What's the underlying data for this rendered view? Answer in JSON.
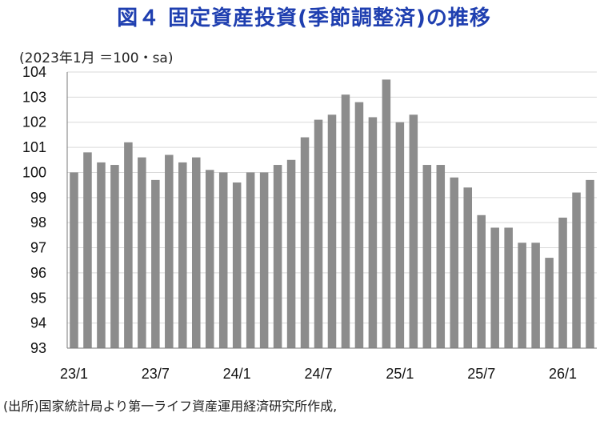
{
  "title": "図４ 固定資産投資(季節調整済)の推移",
  "unit_note": "(2023年1月 ＝100・sa)",
  "source_note": "(出所)国家統計局より第一ライフ資産運用経済研究所作成,",
  "colors": {
    "title": "#1f3fb0",
    "bar": "#8c8c8c",
    "grid": "#d9d9d9"
  },
  "chart_data": {
    "type": "bar",
    "title": "図４ 固定資産投資(季節調整済)の推移",
    "ylim": [
      93,
      104
    ],
    "y_ticks": [
      "93",
      "94",
      "95",
      "96",
      "97",
      "98",
      "99",
      "100",
      "101",
      "102",
      "103",
      "104"
    ],
    "x_tick_labels": [
      "23/1",
      "23/7",
      "24/1",
      "24/7",
      "25/1",
      "25/7",
      "26/1"
    ],
    "x_tick_positions": [
      0,
      6,
      12,
      18,
      24,
      30,
      36
    ],
    "grid": true,
    "categories": [
      "23/1",
      "23/2",
      "23/3",
      "23/4",
      "23/5",
      "23/6",
      "23/7",
      "23/8",
      "23/9",
      "23/10",
      "23/11",
      "23/12",
      "24/1",
      "24/2",
      "24/3",
      "24/4",
      "24/5",
      "24/6",
      "24/7",
      "24/8",
      "24/9",
      "24/10",
      "24/11",
      "24/12",
      "25/1",
      "25/2",
      "25/3",
      "25/4",
      "25/5",
      "25/6",
      "25/7",
      "25/8",
      "25/9",
      "25/10",
      "25/11",
      "25/12",
      "26/1",
      "26/2",
      "26/3"
    ],
    "values": [
      100.0,
      100.8,
      100.4,
      100.3,
      101.2,
      100.6,
      99.7,
      100.7,
      100.4,
      100.6,
      100.1,
      100.0,
      99.6,
      100.0,
      100.0,
      100.3,
      100.5,
      101.4,
      102.1,
      102.3,
      103.1,
      102.8,
      102.2,
      103.7,
      102.0,
      102.3,
      100.3,
      100.3,
      99.8,
      99.4,
      98.3,
      97.8,
      97.8,
      97.2,
      97.2,
      96.6,
      98.2,
      99.2,
      99.7
    ]
  }
}
